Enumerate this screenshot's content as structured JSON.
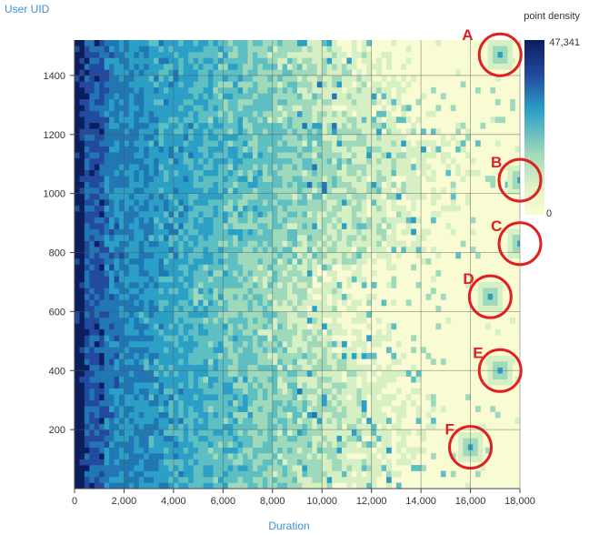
{
  "chart_data": {
    "type": "heatmap",
    "ylabel": "User UID",
    "xlabel": "Duration",
    "xlim": [
      0,
      18000
    ],
    "ylim": [
      0,
      1520
    ],
    "x_ticks": [
      0,
      2000,
      4000,
      6000,
      8000,
      10000,
      12000,
      14000,
      16000,
      18000
    ],
    "x_tick_labels": [
      "0",
      "2,000",
      "4,000",
      "6,000",
      "8,000",
      "10,000",
      "12,000",
      "14,000",
      "16,000",
      "18,000"
    ],
    "y_ticks": [
      200,
      400,
      600,
      800,
      1000,
      1200,
      1400
    ],
    "y_tick_labels": [
      "200",
      "400",
      "600",
      "800",
      "1000",
      "1200",
      "1400"
    ],
    "grid": true,
    "cell_size": {
      "x": 200,
      "y": 20
    },
    "legend": {
      "title": "point density",
      "max_label": "47,341",
      "min_label": "0",
      "max": 47341,
      "min": 0,
      "placement": "top-right",
      "colors": [
        "#f9fbd3",
        "#d6efc3",
        "#9fd9bb",
        "#5ebfc2",
        "#2c9fc6",
        "#2176b4",
        "#234a9f",
        "#0b1e5e"
      ]
    },
    "annotations": [
      {
        "label": "A",
        "x": 17200,
        "y": 1470
      },
      {
        "label": "B",
        "x": 18000,
        "y": 1045
      },
      {
        "label": "C",
        "x": 18000,
        "y": 830
      },
      {
        "label": "D",
        "x": 16800,
        "y": 650
      },
      {
        "label": "E",
        "x": 17200,
        "y": 400
      },
      {
        "label": "F",
        "x": 16000,
        "y": 140
      }
    ],
    "annotation_color": "#e02020",
    "outliers": [
      {
        "x": 17200,
        "y": 1470
      },
      {
        "x": 18000,
        "y": 1045
      },
      {
        "x": 18000,
        "y": 830
      },
      {
        "x": 16800,
        "y": 650
      },
      {
        "x": 17200,
        "y": 400
      },
      {
        "x": 16000,
        "y": 140
      }
    ]
  }
}
